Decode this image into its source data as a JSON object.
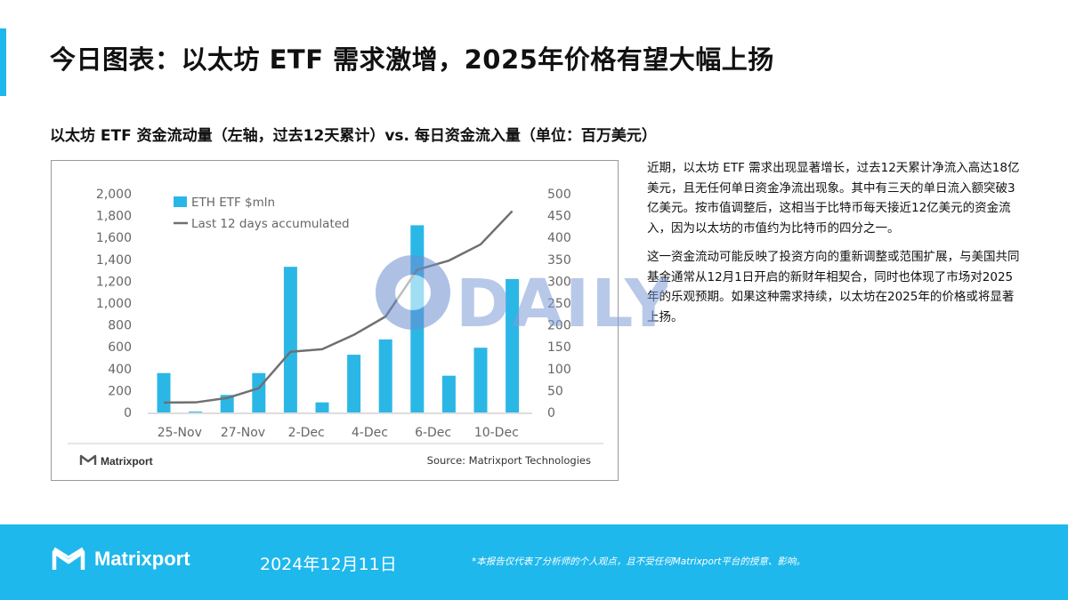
{
  "page": {
    "title": "今日图表：以太坊 ETF 需求激增，2025年价格有望大幅上扬",
    "chart_heading": "以太坊 ETF 资金流动量（左轴，过去12天累计）vs. 每日资金流入量（单位：百万美元）"
  },
  "commentary": [
    "近期，以太坊 ETF 需求出现显著增长，过去12天累计净流入高达18亿美元，且无任何单日资金净流出现象。其中有三天的单日流入额突破3亿美元。按市值调整后，这相当于比特币每天接近12亿美元的资金流入，因为以太坊的市值约为比特币的四分之一。",
    "这一资金流动可能反映了投资方向的重新调整或范围扩展，与美国共同基金通常从12月1日开启的新财年相契合，同时也体现了市场对2025年的乐观预期。如果这种需求持续，以太坊在2025年的价格或将显著上扬。"
  ],
  "chart_data": {
    "type": "bar+line",
    "x_tick_labels": [
      "25-Nov",
      "27-Nov",
      "2-Dec",
      "4-Dec",
      "6-Dec",
      "10-Dec"
    ],
    "series": [
      {
        "name": "ETH ETF $mln",
        "type": "bar",
        "axis": "right",
        "values": [
          90,
          2,
          40,
          90,
          333,
          23,
          132,
          167,
          428,
          84,
          148,
          305
        ],
        "color": "#2bb7e6"
      },
      {
        "name": "Last 12 days accumulated",
        "type": "line",
        "axis": "left",
        "values": [
          90,
          92,
          132,
          222,
          555,
          578,
          710,
          877,
          1305,
          1389,
          1537,
          1842
        ],
        "color": "#707070"
      }
    ],
    "left_axis": {
      "ticks": [
        "0",
        "200",
        "400",
        "600",
        "800",
        "1,000",
        "1,200",
        "1,400",
        "1,600",
        "1,800",
        "2,000"
      ],
      "range": [
        0,
        2000
      ]
    },
    "right_axis": {
      "ticks": [
        "0",
        "50",
        "100",
        "150",
        "200",
        "250",
        "300",
        "350",
        "400",
        "450",
        "500"
      ],
      "range": [
        0,
        500
      ]
    },
    "grid": false,
    "legend_position": "top-left",
    "source": "Source: Matrixport Technologies",
    "brand": "Matrixport"
  },
  "watermark": {
    "text": "ODAILY"
  },
  "footer": {
    "brand": "Matrixport",
    "date": "2024年12月11日",
    "disclaimer": "*本报告仅代表了分析师的个人观点，且不受任何Matrixport平台的授意、影响。"
  }
}
